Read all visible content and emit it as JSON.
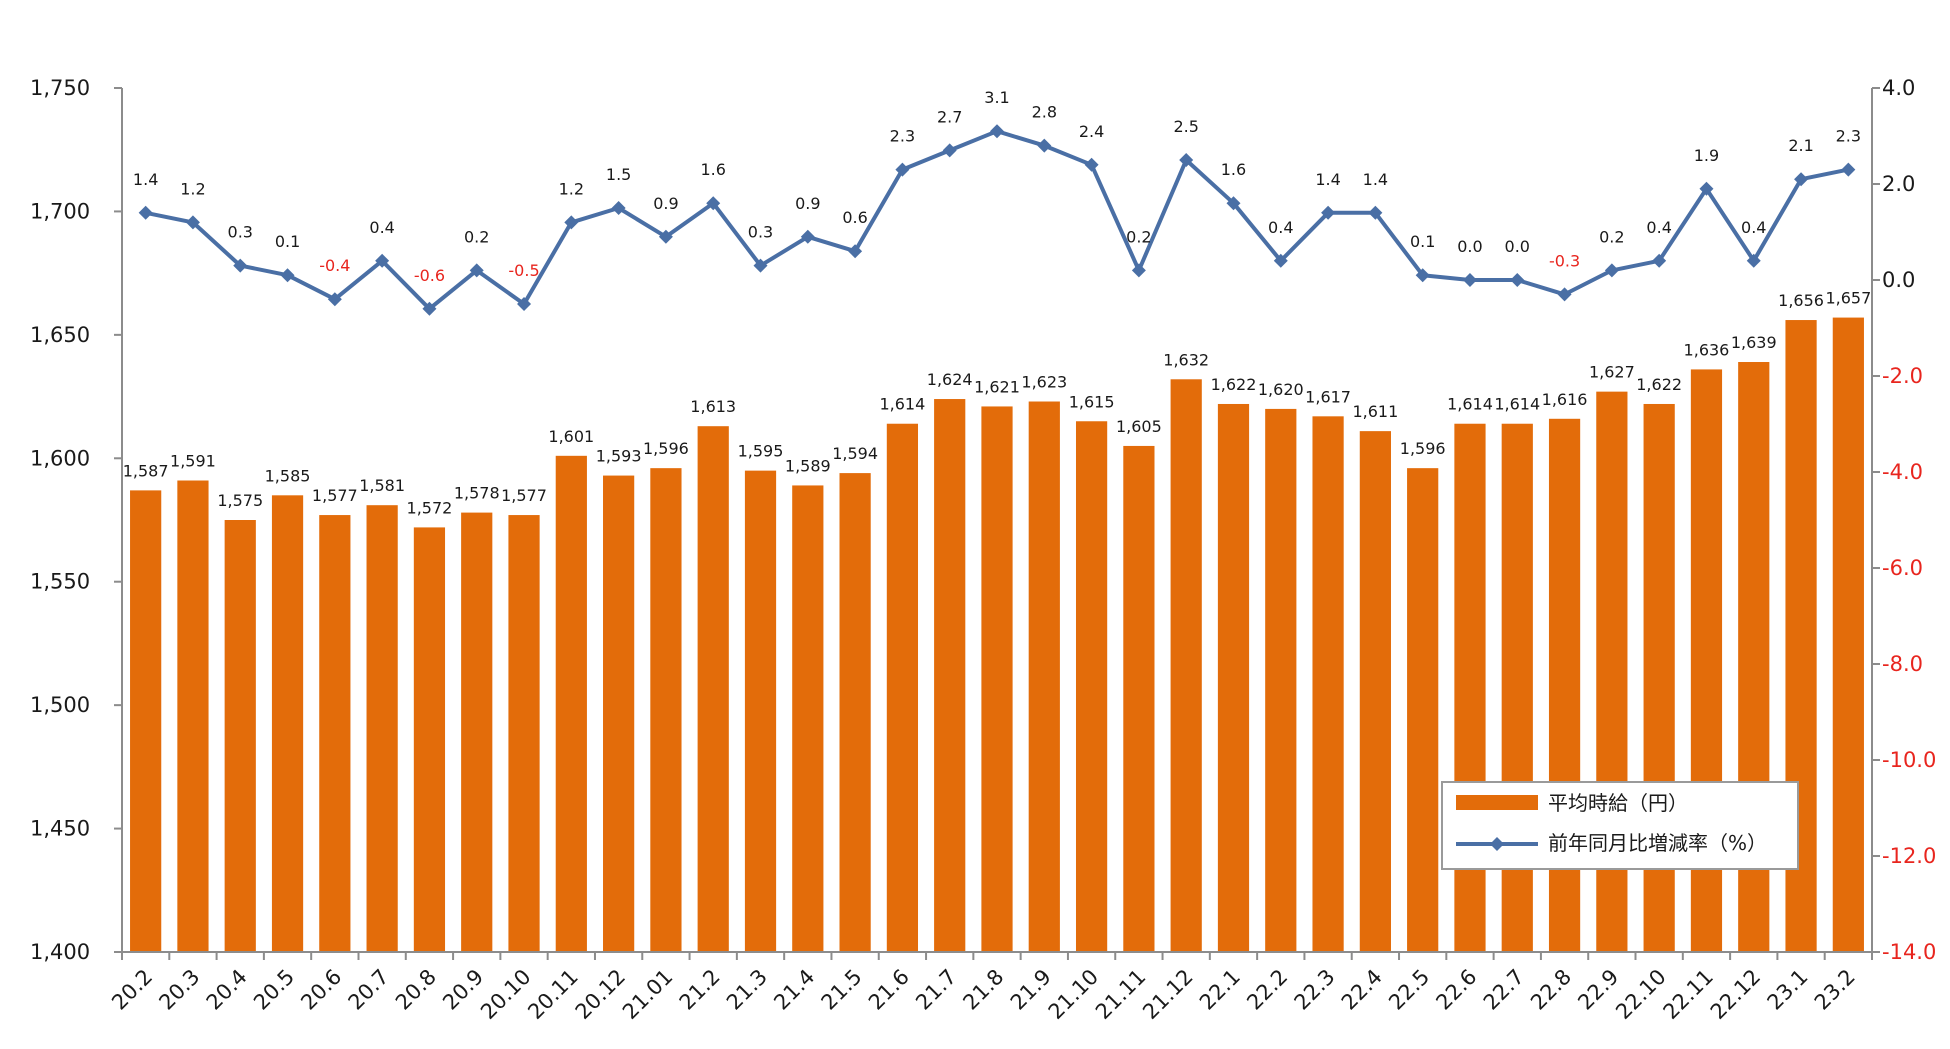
{
  "chart_data": {
    "type": "bar+line",
    "categories": [
      "20.2",
      "20.3",
      "20.4",
      "20.5",
      "20.6",
      "20.7",
      "20.8",
      "20.9",
      "20.10",
      "20.11",
      "20.12",
      "21.01",
      "21.2",
      "21.3",
      "21.4",
      "21.5",
      "21.6",
      "21.7",
      "21.8",
      "21.9",
      "21.10",
      "21.11",
      "21.12",
      "22.1",
      "22.2",
      "22.3",
      "22.4",
      "22.5",
      "22.6",
      "22.7",
      "22.8",
      "22.9",
      "22.10",
      "22.11",
      "22.12",
      "23.1",
      "23.2"
    ],
    "series": [
      {
        "name": "平均時給（円）",
        "type": "bar",
        "axis": "left",
        "color": "#e36c0a",
        "values": [
          1587,
          1591,
          1575,
          1585,
          1577,
          1581,
          1572,
          1578,
          1577,
          1601,
          1593,
          1596,
          1613,
          1595,
          1589,
          1594,
          1614,
          1624,
          1621,
          1623,
          1615,
          1605,
          1632,
          1622,
          1620,
          1617,
          1611,
          1596,
          1614,
          1614,
          1616,
          1627,
          1622,
          1636,
          1639,
          1656,
          1657
        ],
        "labels": [
          "1,587",
          "1,591",
          "1,575",
          "1,585",
          "1,577",
          "1,581",
          "1,572",
          "1,578",
          "1,577",
          "1,601",
          "1,593",
          "1,596",
          "1,613",
          "1,595",
          "1,589",
          "1,594",
          "1,614",
          "1,624",
          "1,621",
          "1,623",
          "1,615",
          "1,605",
          "1,632",
          "1,622",
          "1,620",
          "1,617",
          "1,611",
          "1,596",
          "1,614",
          "1,614",
          "1,616",
          "1,627",
          "1,622",
          "1,636",
          "1,639",
          "1,656",
          "1,657"
        ]
      },
      {
        "name": "前年同月比増減率（%）",
        "type": "line",
        "axis": "right",
        "color": "#4a6fa5",
        "values": [
          1.4,
          1.2,
          0.3,
          0.1,
          -0.4,
          0.4,
          -0.6,
          0.2,
          -0.5,
          1.2,
          1.5,
          0.9,
          1.6,
          0.3,
          0.9,
          0.6,
          2.3,
          2.7,
          3.1,
          2.8,
          2.4,
          0.2,
          2.5,
          1.6,
          0.4,
          1.4,
          1.4,
          0.1,
          0.0,
          0.0,
          -0.3,
          0.2,
          0.4,
          1.9,
          0.4,
          2.1,
          2.3
        ],
        "labels": [
          "1.4",
          "1.2",
          "0.3",
          "0.1",
          "-0.4",
          "0.4",
          "-0.6",
          "0.2",
          "-0.5",
          "1.2",
          "1.5",
          "0.9",
          "1.6",
          "0.3",
          "0.9",
          "0.6",
          "2.3",
          "2.7",
          "3.1",
          "2.8",
          "2.4",
          "0.2",
          "2.5",
          "1.6",
          "0.4",
          "1.4",
          "1.4",
          "0.1",
          "0.0",
          "0.0",
          "-0.3",
          "0.2",
          "0.4",
          "1.9",
          "0.4",
          "2.1",
          "2.3"
        ]
      }
    ],
    "left_axis": {
      "range": [
        1400,
        1750
      ],
      "ticks": [
        1400,
        1450,
        1500,
        1550,
        1600,
        1650,
        1700,
        1750
      ],
      "tick_labels": [
        "1,400",
        "1,450",
        "1,500",
        "1,550",
        "1,600",
        "1,650",
        "1,700",
        "1,750"
      ]
    },
    "right_axis": {
      "range": [
        -14,
        4
      ],
      "ticks": [
        4,
        2,
        0,
        -2,
        -4,
        -6,
        -8,
        -10,
        -12,
        -14
      ],
      "tick_labels": [
        "4.0",
        "2.0",
        "0.0",
        "-2.0",
        "-4.0",
        "-6.0",
        "-8.0",
        "-10.0",
        "-12.0",
        "-14.0"
      ]
    },
    "negative_color": "#e8251e",
    "legend_position": "lower-right",
    "grid": false,
    "title": "",
    "xlabel": "",
    "ylabel": ""
  },
  "legend": {
    "bar_label": "平均時給（円）",
    "line_label": "前年同月比増減率（%）"
  }
}
